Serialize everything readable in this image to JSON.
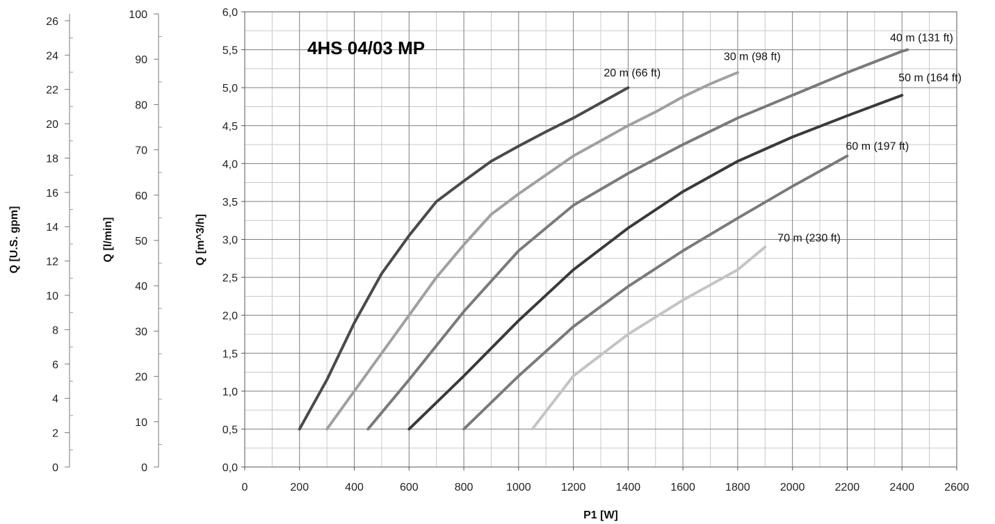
{
  "chart_data": {
    "type": "line",
    "title": "4HS 04/03 MP",
    "xlabel": "P1 [W]",
    "ylabel": "Q [m^3/h]",
    "xlim": [
      0,
      2600
    ],
    "ylim": [
      0,
      6
    ],
    "x_ticks": [
      "0",
      "200",
      "400",
      "600",
      "800",
      "1000",
      "1200",
      "1400",
      "1600",
      "1800",
      "2000",
      "2200",
      "2400",
      "2600"
    ],
    "y_ticks": [
      "0,0",
      "0,5",
      "1,0",
      "1,5",
      "2,0",
      "2,5",
      "3,0",
      "3,5",
      "4,0",
      "4,5",
      "5,0",
      "5,5",
      "6,0"
    ],
    "grid": true,
    "secondary_axes": [
      {
        "label": "Q [l/min]",
        "ticks": [
          "0",
          "10",
          "20",
          "30",
          "40",
          "50",
          "60",
          "70",
          "80",
          "90",
          "100"
        ],
        "range": [
          0,
          100
        ]
      },
      {
        "label": "Q [U.S. gpm]",
        "ticks": [
          "0",
          "2",
          "4",
          "6",
          "8",
          "10",
          "12",
          "14",
          "16",
          "18",
          "20",
          "22",
          "24",
          "26"
        ],
        "range": [
          0,
          26.4
        ]
      }
    ],
    "series": [
      {
        "name": "20 m (66 ft)",
        "color": "#4a4a4a",
        "points": [
          [
            200,
            0.5
          ],
          [
            300,
            1.15
          ],
          [
            400,
            1.9
          ],
          [
            500,
            2.55
          ],
          [
            600,
            3.05
          ],
          [
            700,
            3.5
          ],
          [
            800,
            3.77
          ],
          [
            900,
            4.03
          ],
          [
            1000,
            4.23
          ],
          [
            1100,
            4.42
          ],
          [
            1200,
            4.6
          ],
          [
            1300,
            4.8
          ],
          [
            1400,
            5.0
          ]
        ]
      },
      {
        "name": "30 m (98 ft)",
        "color": "#a0a0a0",
        "points": [
          [
            300,
            0.5
          ],
          [
            400,
            1.0
          ],
          [
            500,
            1.5
          ],
          [
            600,
            2.0
          ],
          [
            700,
            2.5
          ],
          [
            800,
            2.93
          ],
          [
            900,
            3.33
          ],
          [
            1000,
            3.6
          ],
          [
            1100,
            3.85
          ],
          [
            1200,
            4.1
          ],
          [
            1300,
            4.3
          ],
          [
            1400,
            4.5
          ],
          [
            1500,
            4.68
          ],
          [
            1600,
            4.88
          ],
          [
            1700,
            5.05
          ],
          [
            1800,
            5.2
          ]
        ]
      },
      {
        "name": "40 m (131 ft)",
        "color": "#7a7a7a",
        "points": [
          [
            450,
            0.5
          ],
          [
            600,
            1.15
          ],
          [
            800,
            2.05
          ],
          [
            1000,
            2.85
          ],
          [
            1200,
            3.45
          ],
          [
            1400,
            3.87
          ],
          [
            1600,
            4.25
          ],
          [
            1800,
            4.6
          ],
          [
            2000,
            4.9
          ],
          [
            2200,
            5.2
          ],
          [
            2400,
            5.48
          ],
          [
            2420,
            5.5
          ]
        ]
      },
      {
        "name": "50 m (164 ft)",
        "color": "#3a3a3a",
        "points": [
          [
            600,
            0.5
          ],
          [
            800,
            1.2
          ],
          [
            1000,
            1.93
          ],
          [
            1200,
            2.6
          ],
          [
            1400,
            3.15
          ],
          [
            1600,
            3.63
          ],
          [
            1800,
            4.03
          ],
          [
            2000,
            4.35
          ],
          [
            2200,
            4.63
          ],
          [
            2400,
            4.9
          ]
        ]
      },
      {
        "name": "60 m (197 ft)",
        "color": "#7a7a7a",
        "points": [
          [
            800,
            0.5
          ],
          [
            1000,
            1.2
          ],
          [
            1200,
            1.85
          ],
          [
            1400,
            2.38
          ],
          [
            1600,
            2.85
          ],
          [
            1800,
            3.28
          ],
          [
            2000,
            3.7
          ],
          [
            2200,
            4.1
          ]
        ]
      },
      {
        "name": "70 m (230 ft)",
        "color": "#c4c4c4",
        "points": [
          [
            1050,
            0.5
          ],
          [
            1200,
            1.2
          ],
          [
            1400,
            1.75
          ],
          [
            1600,
            2.2
          ],
          [
            1800,
            2.6
          ],
          [
            1900,
            2.9
          ]
        ]
      }
    ]
  }
}
